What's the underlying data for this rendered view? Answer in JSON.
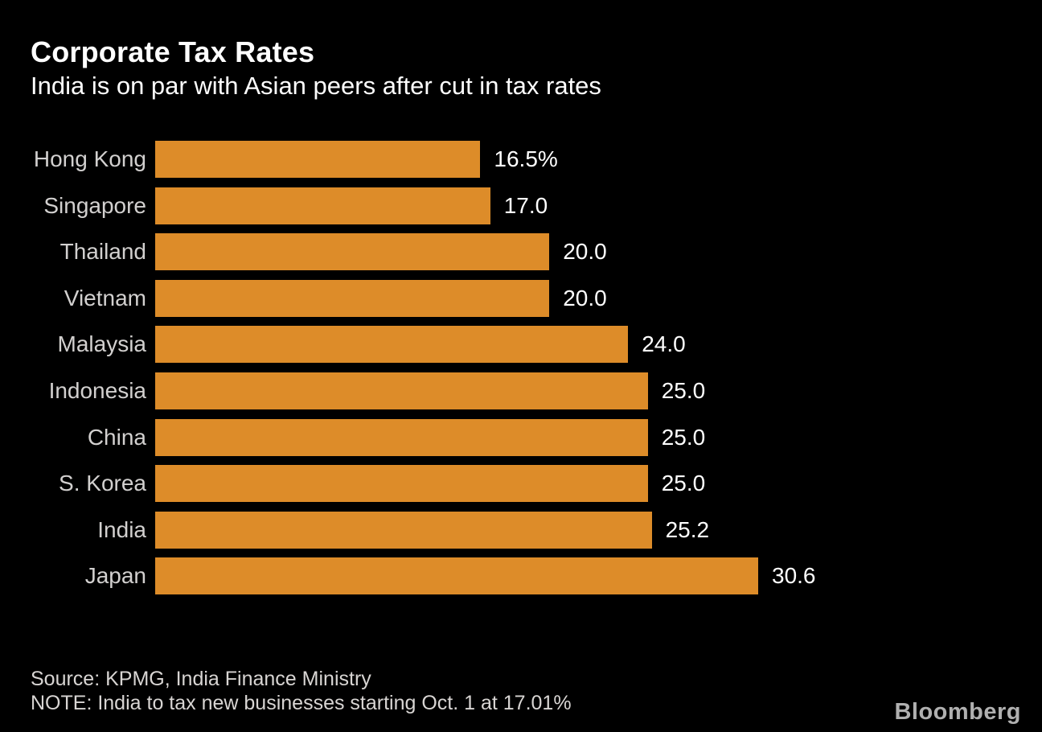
{
  "header": {
    "title": "Corporate Tax Rates",
    "subtitle": "India is on par with Asian peers after cut in tax rates"
  },
  "chart_data": {
    "type": "bar",
    "orientation": "horizontal",
    "title": "Corporate Tax Rates",
    "subtitle": "India is on par with Asian peers after cut in tax rates",
    "categories": [
      "Hong Kong",
      "Singapore",
      "Thailand",
      "Vietnam",
      "Malaysia",
      "Indonesia",
      "China",
      "S. Korea",
      "India",
      "Japan"
    ],
    "values": [
      16.5,
      17.0,
      20.0,
      20.0,
      24.0,
      25.0,
      25.0,
      25.0,
      25.2,
      30.6
    ],
    "value_labels": [
      "16.5%",
      "17.0",
      "20.0",
      "20.0",
      "24.0",
      "25.0",
      "25.0",
      "25.0",
      "25.2",
      "30.6"
    ],
    "unit": "percent",
    "xlabel": "",
    "ylabel": "",
    "xlim": [
      0,
      30.6
    ],
    "grid": false,
    "legend": false,
    "sorted": "ascending"
  },
  "colors": {
    "background": "#000000",
    "bar": "#dd8c29",
    "category_label": "#d2d0cf",
    "value_label": "#ffffff",
    "title": "#ffffff",
    "footer_text": "#d8d5d3",
    "logo": "#b0b0b0"
  },
  "footer": {
    "source": "Source: KPMG, India Finance Ministry",
    "note": "NOTE: India to tax new businesses starting Oct. 1 at 17.01%"
  },
  "branding": {
    "logo_text": "Bloomberg"
  }
}
